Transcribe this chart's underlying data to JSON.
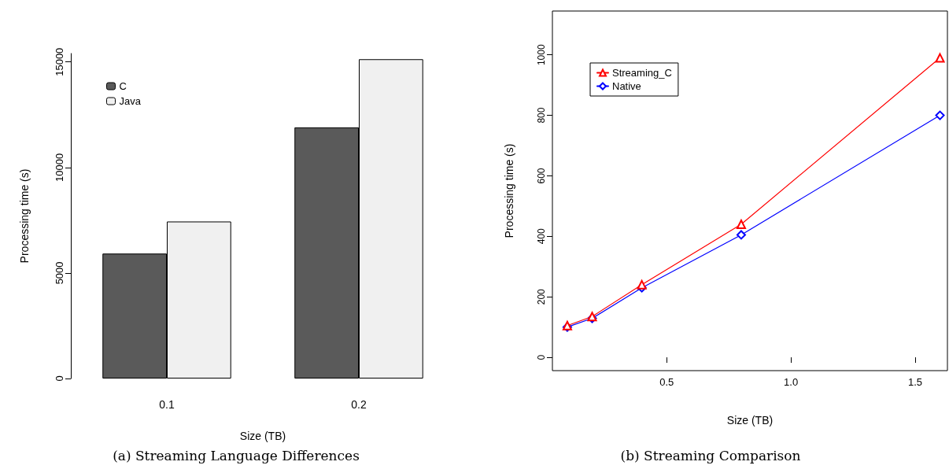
{
  "chart_data": [
    {
      "type": "bar",
      "title": "(a) Streaming Language Differences",
      "xlabel": "Size (TB)",
      "ylabel": "Processing time (s)",
      "categories": [
        "0.1",
        "0.2"
      ],
      "series": [
        {
          "name": "C",
          "color": "#5a5a5a",
          "values": [
            5920,
            11900
          ]
        },
        {
          "name": "Java",
          "color": "#f0f0f0",
          "values": [
            7440,
            15130
          ]
        }
      ],
      "ylim": [
        0,
        15400
      ],
      "yticks": [
        0,
        5000,
        10000,
        15000
      ],
      "grid": false,
      "legend": "top left"
    },
    {
      "type": "line",
      "title": "(b) Streaming Comparison",
      "xlabel": "Size (TB)",
      "ylabel": "Processing time (s)",
      "x": [
        0.1,
        0.2,
        0.4,
        0.8,
        1.6
      ],
      "series": [
        {
          "name": "Streaming_C",
          "color": "#ff0000",
          "marker": "triangle",
          "values": [
            105,
            135,
            240,
            440,
            990
          ]
        },
        {
          "name": "Native",
          "color": "#0000ff",
          "marker": "diamond",
          "values": [
            100,
            129,
            230,
            405,
            800
          ]
        }
      ],
      "xlim": [
        0.04,
        1.63
      ],
      "xticks": [
        0.5,
        {
          "value": 1,
          "label": "1.0"
        },
        1.5
      ],
      "ylim": [
        -44,
        1145
      ],
      "yticks": [
        0,
        200,
        400,
        600,
        800,
        1000
      ],
      "grid": false,
      "legend": "top left",
      "line_style": "solid"
    }
  ]
}
